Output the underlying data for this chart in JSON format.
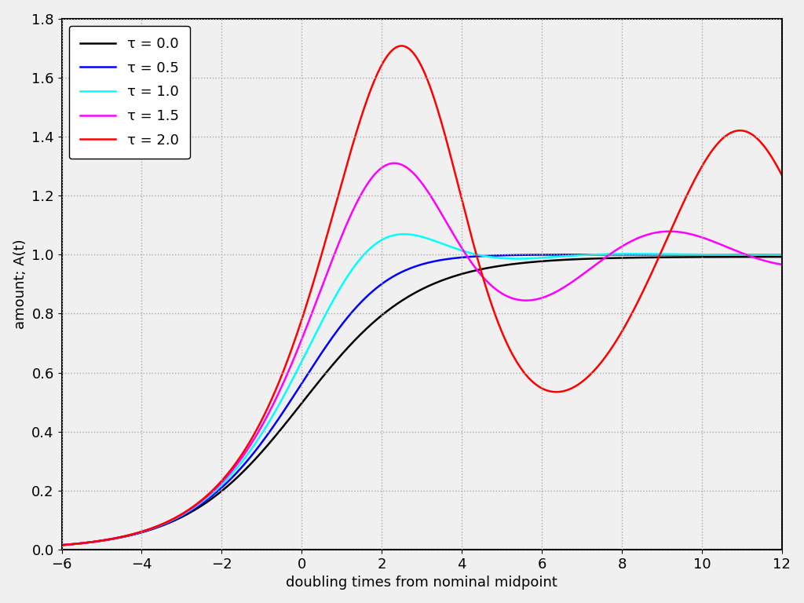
{
  "taus": [
    0.0,
    0.5,
    1.0,
    1.5,
    2.0
  ],
  "colors": [
    "black",
    "blue",
    "cyan",
    "magenta",
    "red"
  ],
  "legend_labels": [
    "τ = 0.0",
    "τ = 0.5",
    "τ = 1.0",
    "τ = 1.5",
    "τ = 2.0"
  ],
  "xlabel": "doubling times from nominal midpoint",
  "ylabel": "amount; A(t)",
  "xlim": [
    -6,
    12
  ],
  "ylim": [
    0.0,
    1.8
  ],
  "yticks": [
    0.0,
    0.2,
    0.4,
    0.6,
    0.8,
    1.0,
    1.2,
    1.4,
    1.6,
    1.8
  ],
  "xticks": [
    -6,
    -4,
    -2,
    0,
    2,
    4,
    6,
    8,
    10,
    12
  ],
  "linewidth": 1.8,
  "figsize": [
    10.24,
    7.68
  ],
  "dpi": 100,
  "bg_color": "#f0f0f0",
  "grid_color": "#aaaaaa",
  "legend_fontsize": 13,
  "tick_fontsize": 13,
  "label_fontsize": 13
}
